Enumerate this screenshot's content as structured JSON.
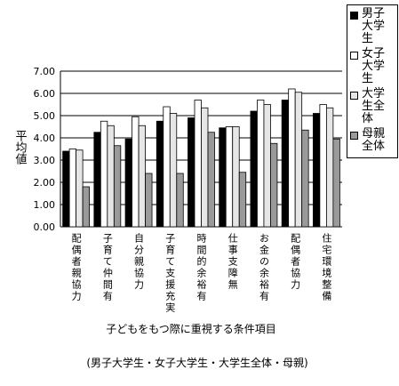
{
  "chart_data": {
    "type": "bar",
    "ylabel": "平均値",
    "xlabel": "子どもをもつ際に重視する条件項目",
    "note": "(男子大学生・女子大学生・大学生全体・母親)",
    "categories": [
      "配偶者親協力",
      "子育て仲間有",
      "自分親協力",
      "子育て支援充実",
      "時間的余裕有",
      "仕事支障無",
      "お金の余裕有",
      "配偶者協力",
      "住宅環境整備"
    ],
    "series": [
      {
        "name": "男子大学生",
        "color": "#000000",
        "values": [
          3.4,
          4.25,
          3.95,
          4.75,
          4.9,
          4.45,
          5.2,
          5.7,
          5.1
        ]
      },
      {
        "name": "女子大学生",
        "color": "#ffffff",
        "values": [
          3.5,
          4.75,
          4.95,
          5.4,
          5.7,
          4.5,
          5.7,
          6.2,
          5.5
        ]
      },
      {
        "name": "大学生全体",
        "color": "#e6e6e6",
        "values": [
          3.45,
          4.55,
          4.55,
          5.1,
          5.35,
          4.5,
          5.5,
          6.05,
          5.35
        ]
      },
      {
        "name": "母親全体",
        "color": "#9a9a9a",
        "values": [
          1.8,
          3.65,
          2.4,
          2.4,
          4.25,
          2.45,
          3.75,
          4.35,
          3.95
        ]
      }
    ],
    "ylim": [
      0,
      7
    ],
    "yticks": [
      {
        "value": 0,
        "label": "0.00"
      },
      {
        "value": 1,
        "label": "1.00"
      },
      {
        "value": 2,
        "label": "2.00"
      },
      {
        "value": 3,
        "label": "3.00"
      },
      {
        "value": 4,
        "label": "4.00"
      },
      {
        "value": 5,
        "label": "5.00"
      },
      {
        "value": 6,
        "label": "6.00"
      },
      {
        "value": 7,
        "label": "7.00"
      }
    ],
    "grid": true
  }
}
